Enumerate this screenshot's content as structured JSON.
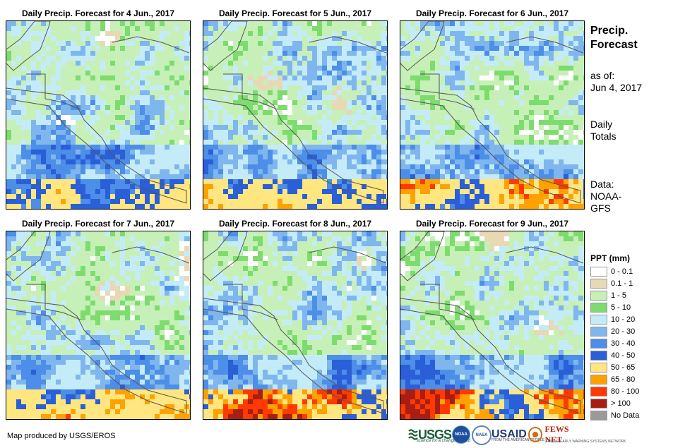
{
  "panels": [
    {
      "title": "Daily Precip. Forecast for 4 Jun., 2017"
    },
    {
      "title": "Daily Precip. Forecast for 5 Jun., 2017"
    },
    {
      "title": "Daily Precip. Forecast for 6 Jun., 2017"
    },
    {
      "title": "Daily Precip. Forecast for 7 Jun., 2017"
    },
    {
      "title": "Daily Precip. Forecast for 8 Jun., 2017"
    },
    {
      "title": "Daily Precip. Forecast for 9 Jun., 2017"
    }
  ],
  "info": {
    "title_line1": "Precip.",
    "title_line2": "Forecast",
    "asof_label": "as of:",
    "asof_date": "Jun 4, 2017",
    "daily_line1": "Daily",
    "daily_line2": "Totals",
    "data_line1": "Data:",
    "data_line2": "NOAA-",
    "data_line3": "GFS"
  },
  "legend": {
    "title": "PPT (mm)",
    "items": [
      {
        "label": "0 - 0.1",
        "color": "#ffffff"
      },
      {
        "label": "0.1 - 1",
        "color": "#e8d8b4"
      },
      {
        "label": "1 - 5",
        "color": "#c6f0b8"
      },
      {
        "label": "5 - 10",
        "color": "#7ddc6e"
      },
      {
        "label": "10 - 20",
        "color": "#c4ecf8"
      },
      {
        "label": "20 - 30",
        "color": "#7fb6ee"
      },
      {
        "label": "30 - 40",
        "color": "#4c8ee8"
      },
      {
        "label": "40 - 50",
        "color": "#2a5fd8"
      },
      {
        "label": "50 - 65",
        "color": "#ffe680"
      },
      {
        "label": "65 - 80",
        "color": "#ffa200"
      },
      {
        "label": "80 - 100",
        "color": "#ff3a00"
      },
      {
        "label": "> 100",
        "color": "#a81e14"
      },
      {
        "label": "No Data",
        "color": "#9a9a9a"
      }
    ]
  },
  "credit": "Map produced by USGS/EROS",
  "logos": {
    "usgs": "USGS",
    "usgs_tag": "science for a changing world",
    "noaa": "NOAA",
    "nasa": "NASA",
    "usaid": "USAID",
    "usaid_tag": "FROM THE AMERICAN PEOPLE",
    "fews": "FEWS NET",
    "fews_tag": "FAMINE EARLY WARNING SYSTEMS NETWORK"
  }
}
